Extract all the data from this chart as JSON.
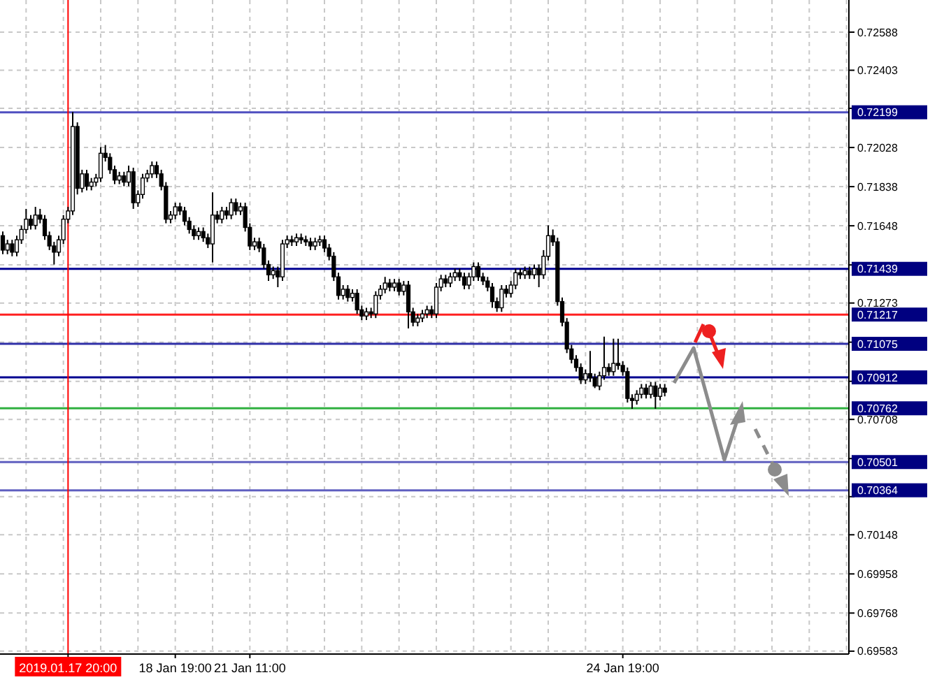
{
  "chart_data": {
    "type": "candlestick",
    "color": "#000000",
    "categories": [
      null,
      null,
      null,
      null,
      null,
      null,
      null,
      null,
      null,
      null,
      null,
      null,
      null,
      null,
      "2019.01.17 20:00",
      null,
      null,
      null,
      null,
      null,
      null,
      null,
      null,
      null,
      null,
      null,
      null,
      null,
      null,
      null,
      null,
      null,
      null,
      null,
      null,
      null,
      null,
      "18 Jan 19:00",
      null,
      null,
      null,
      null,
      null,
      null,
      null,
      null,
      null,
      null,
      null,
      null,
      null,
      null,
      null,
      "21 Jan 11:00",
      null,
      null,
      null,
      null,
      null,
      null,
      null,
      null,
      null,
      null,
      null,
      null,
      null,
      null,
      null,
      null,
      null,
      null,
      null,
      null,
      null,
      null,
      null,
      null,
      null,
      null,
      null,
      null,
      null,
      null,
      null,
      null,
      null,
      null,
      null,
      null,
      null,
      null,
      null,
      null,
      null,
      null,
      null,
      null,
      null,
      null,
      null,
      null,
      null,
      null,
      null,
      null,
      null,
      null,
      null,
      null,
      null,
      null,
      null,
      null,
      null,
      null,
      null,
      null,
      null,
      null,
      null,
      null,
      null,
      null,
      null,
      null,
      null,
      null,
      null,
      null,
      null,
      null,
      null,
      "24 Jan 19:00",
      null,
      null,
      null,
      null,
      null,
      null,
      null,
      null,
      null,
      null,
      null,
      null,
      null,
      null,
      null,
      null,
      null,
      null,
      null,
      null,
      null,
      null,
      null,
      null,
      null,
      null,
      null,
      null,
      null,
      null,
      null,
      null,
      null,
      null,
      null,
      null,
      null,
      null,
      null,
      null,
      null,
      null,
      null,
      null,
      null,
      null,
      null,
      null
    ],
    "ohlc": [
      [
        0.716,
        0.7162,
        0.7151,
        0.7153
      ],
      [
        0.7153,
        0.7158,
        0.7151,
        0.7156
      ],
      [
        0.7156,
        0.7158,
        0.715,
        0.7152
      ],
      [
        0.7152,
        0.716,
        0.715,
        0.7158
      ],
      [
        0.7158,
        0.7165,
        0.7156,
        0.7163
      ],
      [
        0.7163,
        0.7173,
        0.7161,
        0.7168
      ],
      [
        0.7168,
        0.717,
        0.7163,
        0.7165
      ],
      [
        0.7165,
        0.7174,
        0.7163,
        0.717
      ],
      [
        0.717,
        0.7173,
        0.7166,
        0.7168
      ],
      [
        0.7168,
        0.717,
        0.7158,
        0.716
      ],
      [
        0.716,
        0.7162,
        0.7153,
        0.7155
      ],
      [
        0.7155,
        0.7157,
        0.7146,
        0.7152
      ],
      [
        0.7152,
        0.716,
        0.715,
        0.7158
      ],
      [
        0.7158,
        0.717,
        0.7156,
        0.7168
      ],
      [
        0.7168,
        0.7174,
        0.7166,
        0.7172
      ],
      [
        0.7172,
        0.722,
        0.717,
        0.7213
      ],
      [
        0.7213,
        0.7215,
        0.718,
        0.7183
      ],
      [
        0.7183,
        0.7192,
        0.7181,
        0.719
      ],
      [
        0.719,
        0.7192,
        0.7182,
        0.7184
      ],
      [
        0.7184,
        0.7188,
        0.7182,
        0.7186
      ],
      [
        0.7186,
        0.719,
        0.7184,
        0.7188
      ],
      [
        0.7188,
        0.7203,
        0.7186,
        0.72
      ],
      [
        0.72,
        0.7204,
        0.7196,
        0.7198
      ],
      [
        0.7198,
        0.72,
        0.719,
        0.7192
      ],
      [
        0.7192,
        0.7194,
        0.7185,
        0.7187
      ],
      [
        0.7187,
        0.7191,
        0.7185,
        0.7189
      ],
      [
        0.7189,
        0.7191,
        0.7184,
        0.7186
      ],
      [
        0.7186,
        0.7194,
        0.7184,
        0.7191
      ],
      [
        0.7191,
        0.7193,
        0.7173,
        0.7176
      ],
      [
        0.7176,
        0.7182,
        0.7174,
        0.718
      ],
      [
        0.718,
        0.719,
        0.7178,
        0.7188
      ],
      [
        0.7188,
        0.7192,
        0.7186,
        0.719
      ],
      [
        0.719,
        0.7196,
        0.7188,
        0.7194
      ],
      [
        0.7194,
        0.7196,
        0.7188,
        0.719
      ],
      [
        0.719,
        0.7192,
        0.7182,
        0.7184
      ],
      [
        0.7184,
        0.7186,
        0.7166,
        0.7168
      ],
      [
        0.7168,
        0.7172,
        0.7166,
        0.717
      ],
      [
        0.717,
        0.7176,
        0.7168,
        0.7174
      ],
      [
        0.7174,
        0.7176,
        0.717,
        0.7172
      ],
      [
        0.7172,
        0.7174,
        0.7165,
        0.7167
      ],
      [
        0.7167,
        0.7169,
        0.7161,
        0.7163
      ],
      [
        0.7163,
        0.7165,
        0.7158,
        0.716
      ],
      [
        0.716,
        0.7164,
        0.7158,
        0.7162
      ],
      [
        0.7162,
        0.7164,
        0.7157,
        0.7159
      ],
      [
        0.7159,
        0.7161,
        0.7154,
        0.7156
      ],
      [
        0.7156,
        0.7181,
        0.7147,
        0.717
      ],
      [
        0.717,
        0.7172,
        0.7166,
        0.7168
      ],
      [
        0.7168,
        0.7174,
        0.7166,
        0.7172
      ],
      [
        0.7172,
        0.7174,
        0.7168,
        0.717
      ],
      [
        0.717,
        0.7178,
        0.7168,
        0.7176
      ],
      [
        0.7176,
        0.7178,
        0.717,
        0.7172
      ],
      [
        0.7172,
        0.7176,
        0.717,
        0.7174
      ],
      [
        0.7174,
        0.7176,
        0.7162,
        0.7164
      ],
      [
        0.7164,
        0.7166,
        0.7153,
        0.7155
      ],
      [
        0.7155,
        0.7159,
        0.7153,
        0.7157
      ],
      [
        0.7157,
        0.7159,
        0.7152,
        0.7154
      ],
      [
        0.7154,
        0.7156,
        0.7144,
        0.7146
      ],
      [
        0.7146,
        0.7148,
        0.7138,
        0.7141
      ],
      [
        0.7141,
        0.7145,
        0.7139,
        0.7143
      ],
      [
        0.7143,
        0.7145,
        0.7135,
        0.714
      ],
      [
        0.714,
        0.7158,
        0.7138,
        0.7156
      ],
      [
        0.7156,
        0.716,
        0.7154,
        0.7158
      ],
      [
        0.7158,
        0.716,
        0.7155,
        0.7157
      ],
      [
        0.7157,
        0.7161,
        0.7155,
        0.7159
      ],
      [
        0.7159,
        0.7161,
        0.7156,
        0.7158
      ],
      [
        0.7158,
        0.716,
        0.7155,
        0.7157
      ],
      [
        0.7157,
        0.7159,
        0.7153,
        0.7155
      ],
      [
        0.7155,
        0.7159,
        0.7153,
        0.7157
      ],
      [
        0.7157,
        0.716,
        0.7155,
        0.7158
      ],
      [
        0.7158,
        0.716,
        0.7152,
        0.7154
      ],
      [
        0.7154,
        0.7156,
        0.7148,
        0.715
      ],
      [
        0.715,
        0.7152,
        0.7138,
        0.714
      ],
      [
        0.714,
        0.7142,
        0.7129,
        0.7131
      ],
      [
        0.7131,
        0.7136,
        0.7129,
        0.7134
      ],
      [
        0.7134,
        0.7136,
        0.7128,
        0.713
      ],
      [
        0.713,
        0.7134,
        0.7128,
        0.7132
      ],
      [
        0.7132,
        0.7134,
        0.7122,
        0.7124
      ],
      [
        0.7124,
        0.7126,
        0.7119,
        0.7121
      ],
      [
        0.7121,
        0.7125,
        0.7119,
        0.7123
      ],
      [
        0.7123,
        0.7125,
        0.712,
        0.7122
      ],
      [
        0.7122,
        0.7133,
        0.712,
        0.7131
      ],
      [
        0.7131,
        0.7136,
        0.7129,
        0.7134
      ],
      [
        0.7134,
        0.714,
        0.7132,
        0.7137
      ],
      [
        0.7137,
        0.7139,
        0.7133,
        0.7135
      ],
      [
        0.7135,
        0.7139,
        0.7133,
        0.7137
      ],
      [
        0.7137,
        0.7139,
        0.7131,
        0.7133
      ],
      [
        0.7133,
        0.7138,
        0.7131,
        0.7136
      ],
      [
        0.7136,
        0.7138,
        0.7115,
        0.7123
      ],
      [
        0.7123,
        0.7125,
        0.7116,
        0.7118
      ],
      [
        0.7118,
        0.7122,
        0.7116,
        0.712
      ],
      [
        0.712,
        0.7124,
        0.7118,
        0.7122
      ],
      [
        0.7122,
        0.7126,
        0.712,
        0.7124
      ],
      [
        0.7124,
        0.7126,
        0.712,
        0.7122
      ],
      [
        0.7122,
        0.7137,
        0.712,
        0.7135
      ],
      [
        0.7135,
        0.7141,
        0.7133,
        0.7139
      ],
      [
        0.7139,
        0.7141,
        0.7135,
        0.7137
      ],
      [
        0.7137,
        0.7142,
        0.7135,
        0.714
      ],
      [
        0.714,
        0.7144,
        0.7138,
        0.7142
      ],
      [
        0.7142,
        0.7144,
        0.7138,
        0.714
      ],
      [
        0.714,
        0.7142,
        0.7134,
        0.7136
      ],
      [
        0.7136,
        0.7142,
        0.7134,
        0.714
      ],
      [
        0.714,
        0.7147,
        0.7138,
        0.7145
      ],
      [
        0.7145,
        0.7147,
        0.7138,
        0.714
      ],
      [
        0.714,
        0.7142,
        0.7136,
        0.7138
      ],
      [
        0.7138,
        0.714,
        0.7133,
        0.7135
      ],
      [
        0.7135,
        0.7137,
        0.7125,
        0.7128
      ],
      [
        0.7128,
        0.713,
        0.7123,
        0.7125
      ],
      [
        0.7125,
        0.7136,
        0.7123,
        0.7134
      ],
      [
        0.7134,
        0.7136,
        0.713,
        0.7132
      ],
      [
        0.7132,
        0.7138,
        0.713,
        0.7136
      ],
      [
        0.7136,
        0.7144,
        0.7134,
        0.7142
      ],
      [
        0.7142,
        0.7144,
        0.7139,
        0.7141
      ],
      [
        0.7141,
        0.7145,
        0.7139,
        0.7143
      ],
      [
        0.7143,
        0.7145,
        0.7139,
        0.7141
      ],
      [
        0.7141,
        0.7146,
        0.7139,
        0.7144
      ],
      [
        0.7144,
        0.7146,
        0.7135,
        0.7141
      ],
      [
        0.7141,
        0.7153,
        0.7139,
        0.715
      ],
      [
        0.715,
        0.7165,
        0.7148,
        0.716
      ],
      [
        0.716,
        0.7163,
        0.7155,
        0.7157
      ],
      [
        0.7157,
        0.7159,
        0.7126,
        0.7128
      ],
      [
        0.7128,
        0.713,
        0.7116,
        0.7118
      ],
      [
        0.7118,
        0.712,
        0.7103,
        0.7105
      ],
      [
        0.7105,
        0.7107,
        0.7098,
        0.71
      ],
      [
        0.71,
        0.7102,
        0.7094,
        0.7096
      ],
      [
        0.7096,
        0.7098,
        0.7088,
        0.709
      ],
      [
        0.709,
        0.7095,
        0.7088,
        0.7093
      ],
      [
        0.7093,
        0.7104,
        0.7089,
        0.7091
      ],
      [
        0.7091,
        0.7093,
        0.7086,
        0.7087
      ],
      [
        0.7087,
        0.7094,
        0.7085,
        0.7092
      ],
      [
        0.7092,
        0.7111,
        0.709,
        0.7096
      ],
      [
        0.7096,
        0.7098,
        0.7092,
        0.7094
      ],
      [
        0.7094,
        0.711,
        0.7092,
        0.7098
      ],
      [
        0.7098,
        0.711,
        0.7095,
        0.7097
      ],
      [
        0.7097,
        0.7099,
        0.7092,
        0.7094
      ],
      [
        0.7094,
        0.7096,
        0.7079,
        0.7081
      ],
      [
        0.7081,
        0.7083,
        0.7076,
        0.708
      ],
      [
        0.708,
        0.7085,
        0.7078,
        0.7083
      ],
      [
        0.7083,
        0.7088,
        0.7081,
        0.7086
      ],
      [
        0.7086,
        0.7088,
        0.7081,
        0.7083
      ],
      [
        0.7083,
        0.7089,
        0.7081,
        0.7087
      ],
      [
        0.7087,
        0.7089,
        0.7076,
        0.7082
      ],
      [
        0.7082,
        0.7088,
        0.708,
        0.7086
      ],
      [
        0.7086,
        0.7088,
        0.7082,
        0.7084
      ],
      null,
      null,
      null,
      null,
      null,
      null,
      null,
      null,
      null,
      null,
      null,
      null,
      null,
      null,
      null,
      null,
      null,
      null,
      null,
      null,
      null,
      null,
      null,
      null,
      null,
      null,
      null,
      null,
      null,
      null,
      null,
      null,
      null,
      null,
      null,
      null,
      null,
      null,
      null
    ],
    "ylim": [
      0.69569,
      0.72744
    ],
    "yticks": [
      0.72588,
      0.72403,
      {
        "value": 0.72218,
        "label": null
      },
      0.72028,
      0.71838,
      0.71648,
      {
        "value": 0.71458,
        "label": null
      },
      0.71273,
      {
        "value": 0.71083,
        "label": null
      },
      {
        "value": 0.70893,
        "label": null
      },
      0.70708,
      {
        "value": 0.70518,
        "label": null
      },
      {
        "value": 0.70333,
        "label": null
      },
      0.70148,
      0.69958,
      0.69768,
      0.69583
    ],
    "grid": true,
    "ref_lines": [
      {
        "axis": "y",
        "value": 0.72199,
        "label": "0.72199",
        "color": "#5050c0"
      },
      {
        "axis": "y",
        "value": 0.71439,
        "label": "0.71439",
        "color": "#000090"
      },
      {
        "axis": "y",
        "value": 0.71217,
        "label": "0.71217",
        "color": "#ff2020"
      },
      {
        "axis": "y",
        "value": 0.71075,
        "label": "0.71075",
        "color": "#3030a8"
      },
      {
        "axis": "y",
        "value": 0.70912,
        "label": "0.70912",
        "color": "#000090"
      },
      {
        "axis": "y",
        "value": 0.70762,
        "label": "0.70762",
        "color": "#30b040"
      },
      {
        "axis": "y",
        "value": 0.70501,
        "label": "0.70501",
        "color": "#6060c0"
      },
      {
        "axis": "y",
        "value": 0.70364,
        "label": "0.70364",
        "color": "#6060c0"
      },
      {
        "axis": "x",
        "value": "2019.01.17 20:00",
        "color": "#ff0000"
      }
    ]
  }
}
